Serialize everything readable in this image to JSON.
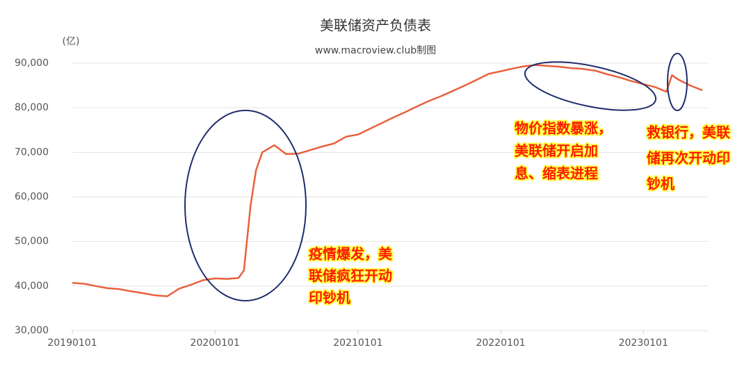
{
  "chart_data": {
    "type": "line",
    "title": "美联储资产负债表",
    "subtitle": "www.macroview.club制图",
    "y_unit": "(亿)",
    "x": [
      "20190101",
      "20190201",
      "20190301",
      "20190401",
      "20190501",
      "20190601",
      "20190701",
      "20190801",
      "20190901",
      "20191001",
      "20191101",
      "20191201",
      "20200101",
      "20200201",
      "20200301",
      "20200315",
      "20200401",
      "20200415",
      "20200501",
      "20200601",
      "20200701",
      "20200801",
      "20200901",
      "20201001",
      "20201101",
      "20201201",
      "20210101",
      "20210201",
      "20210301",
      "20210401",
      "20210501",
      "20210601",
      "20210701",
      "20210801",
      "20210901",
      "20211001",
      "20211101",
      "20211201",
      "20220101",
      "20220201",
      "20220301",
      "20220401",
      "20220501",
      "20220601",
      "20220701",
      "20220801",
      "20220901",
      "20221001",
      "20221101",
      "20221201",
      "20230101",
      "20230201",
      "20230301",
      "20230315",
      "20230401",
      "20230501",
      "20230601"
    ],
    "series": [
      {
        "name": "美联储资产负债表",
        "color": "#e8603c",
        "values": [
          40700,
          40500,
          40000,
          39500,
          39300,
          38800,
          38400,
          37900,
          37700,
          39400,
          40300,
          41300,
          41700,
          41600,
          41800,
          43500,
          58000,
          66000,
          70000,
          71600,
          69600,
          69700,
          70500,
          71300,
          72000,
          73500,
          74000,
          75300,
          76500,
          77800,
          79000,
          80300,
          81500,
          82600,
          83800,
          85000,
          86300,
          87600,
          88200,
          88800,
          89300,
          89600,
          89400,
          89200,
          88900,
          88700,
          88300,
          87500,
          86800,
          86000,
          85300,
          84600,
          83600,
          87300,
          86300,
          85000,
          83900
        ]
      }
    ],
    "xlim": [
      "20190101",
      "20230615"
    ],
    "xticks": [
      "20190101",
      "20200101",
      "20210101",
      "20220101",
      "20230101"
    ],
    "ylim": [
      30000,
      90000
    ],
    "yticks": [
      {
        "value": 30000,
        "label": "30,000"
      },
      {
        "value": 40000,
        "label": "40,000"
      },
      {
        "value": 50000,
        "label": "50,000"
      },
      {
        "value": 60000,
        "label": "60,000"
      },
      {
        "value": 70000,
        "label": "70,000"
      },
      {
        "value": 80000,
        "label": "80,000"
      },
      {
        "value": 90000,
        "label": "90,000"
      }
    ],
    "grid": true,
    "annotations": [
      {
        "lines": [
          "疫情爆发，美",
          "联储疯狂开动",
          "印钞机"
        ]
      },
      {
        "lines": [
          "物价指数暴涨，",
          "美联储开启加",
          "息、缩表进程"
        ]
      },
      {
        "lines": [
          "救银行，美联",
          "储再次开动印",
          "钞机"
        ]
      }
    ]
  }
}
